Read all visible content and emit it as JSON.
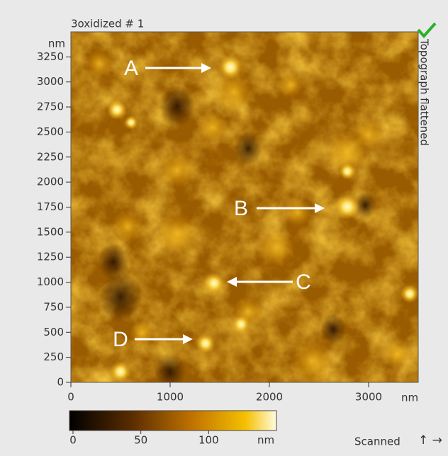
{
  "chart_data": {
    "type": "image",
    "title": "3oxidized # 1",
    "xlim": [
      0,
      3500
    ],
    "ylim": [
      0,
      3500
    ],
    "xticks": [
      0,
      1000,
      2000,
      3000
    ],
    "yticks": [
      0,
      250,
      500,
      750,
      1000,
      1250,
      1500,
      1750,
      2000,
      2250,
      2500,
      2750,
      3000,
      3250
    ],
    "x_unit": "nm",
    "y_unit": "nm",
    "side_label": "Topograph flattened",
    "annotations": [
      "A",
      "B",
      "C",
      "D"
    ],
    "colorbar": {
      "lim": [
        0,
        150
      ],
      "ticks": [
        0,
        50,
        100
      ],
      "unit": "nm"
    },
    "footer": "Scanned"
  }
}
